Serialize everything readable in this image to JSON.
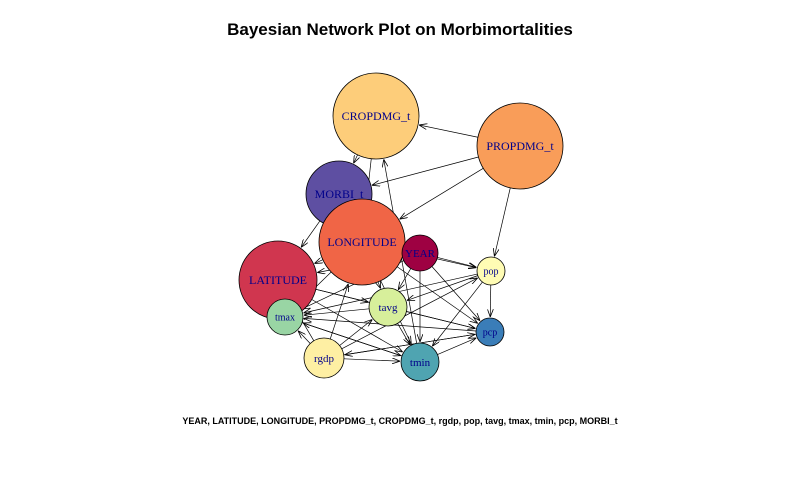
{
  "title": "Bayesian Network Plot on Morbimortalities",
  "subtitle": "YEAR, LATITUDE, LONGITUDE, PROPDMG_t, CROPDMG_t, rgdp, pop, tavg, tmax, tmin, pcp, MORBI_t",
  "nodes": [
    {
      "id": "CROPDMG_t",
      "label": "CROPDMG_t",
      "color": "#FDCD7A"
    },
    {
      "id": "PROPDMG_t",
      "label": "PROPDMG_t",
      "color": "#F99D59"
    },
    {
      "id": "MORBI_t",
      "label": "MORBI_t",
      "color": "#5E4FA2"
    },
    {
      "id": "LONGITUDE",
      "label": "LONGITUDE",
      "color": "#F06546"
    },
    {
      "id": "YEAR",
      "label": "YEAR",
      "color": "#9E0142"
    },
    {
      "id": "LATITUDE",
      "label": "LATITUDE",
      "color": "#D0364F"
    },
    {
      "id": "pop",
      "label": "pop",
      "color": "#FFFCB4"
    },
    {
      "id": "tavg",
      "label": "tavg",
      "color": "#D7EF9B"
    },
    {
      "id": "tmax",
      "label": "tmax",
      "color": "#99D5A4"
    },
    {
      "id": "pcp",
      "label": "pcp",
      "color": "#3A7DB8"
    },
    {
      "id": "rgdp",
      "label": "rgdp",
      "color": "#FEEFA3"
    },
    {
      "id": "tmin",
      "label": "tmin",
      "color": "#4FA4B1"
    }
  ],
  "edges": [
    [
      "PROPDMG_t",
      "CROPDMG_t"
    ],
    [
      "PROPDMG_t",
      "MORBI_t"
    ],
    [
      "PROPDMG_t",
      "LONGITUDE"
    ],
    [
      "PROPDMG_t",
      "pop"
    ],
    [
      "CROPDMG_t",
      "MORBI_t"
    ],
    [
      "CROPDMG_t",
      "LONGITUDE"
    ],
    [
      "MORBI_t",
      "LATITUDE"
    ],
    [
      "YEAR",
      "LONGITUDE"
    ],
    [
      "YEAR",
      "LATITUDE"
    ],
    [
      "YEAR",
      "pop"
    ],
    [
      "YEAR",
      "tavg"
    ],
    [
      "YEAR",
      "tmax"
    ],
    [
      "YEAR",
      "pcp"
    ],
    [
      "YEAR",
      "tmin"
    ],
    [
      "LONGITUDE",
      "LATITUDE"
    ],
    [
      "LONGITUDE",
      "tavg"
    ],
    [
      "LONGITUDE",
      "tmax"
    ],
    [
      "LONGITUDE",
      "pop"
    ],
    [
      "LONGITUDE",
      "pcp"
    ],
    [
      "LONGITUDE",
      "tmin"
    ],
    [
      "LATITUDE",
      "tmax"
    ],
    [
      "LATITUDE",
      "tavg"
    ],
    [
      "LATITUDE",
      "tmin"
    ],
    [
      "LATITUDE",
      "pcp"
    ],
    [
      "pop",
      "pcp"
    ],
    [
      "pop",
      "tavg"
    ],
    [
      "pop",
      "tmax"
    ],
    [
      "pop",
      "tmin"
    ],
    [
      "tavg",
      "tmax"
    ],
    [
      "tavg",
      "pcp"
    ],
    [
      "tavg",
      "tmin"
    ],
    [
      "rgdp",
      "tmax"
    ],
    [
      "rgdp",
      "tavg"
    ],
    [
      "rgdp",
      "tmin"
    ],
    [
      "rgdp",
      "pop"
    ],
    [
      "rgdp",
      "LATITUDE"
    ],
    [
      "rgdp",
      "LONGITUDE"
    ],
    [
      "rgdp",
      "pcp"
    ],
    [
      "tmin",
      "tmax"
    ],
    [
      "tmin",
      "pcp"
    ],
    [
      "tmin",
      "CROPDMG_t"
    ],
    [
      "pcp",
      "tmax"
    ],
    [
      "pcp",
      "rgdp"
    ],
    [
      "tmax",
      "tmin"
    ]
  ]
}
